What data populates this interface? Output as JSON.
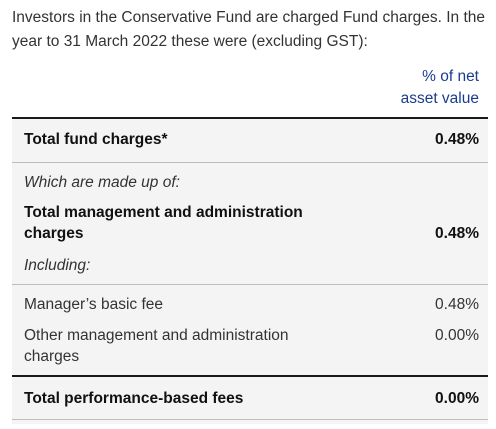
{
  "intro_text": "Investors in the Conservative Fund are charged Fund charges. In the year to 31 March 2022 these were (excluding GST):",
  "column_header": {
    "line1": "% of net",
    "line2": "asset value"
  },
  "rows": [
    {
      "label": "Total fund charges*",
      "value": "0.48%"
    },
    {
      "label": "Which are made up of:"
    },
    {
      "label_line1": "Total management and administration",
      "label_line2": "charges",
      "value": "0.48%"
    },
    {
      "label": "Including:"
    },
    {
      "label": "Manager’s basic fee",
      "value": "0.48%"
    },
    {
      "label_line1": "Other management and administration",
      "label_line2": "charges",
      "value": "0.00%"
    },
    {
      "label": "Total performance-based fees",
      "value": "0.00%"
    }
  ]
}
